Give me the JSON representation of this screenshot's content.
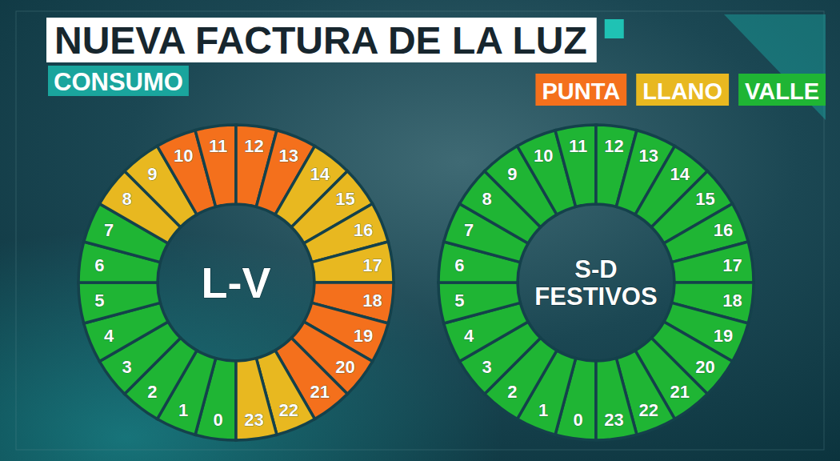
{
  "header": {
    "title": "NUEVA FACTURA DE LA LUZ",
    "subtitle": "CONSUMO"
  },
  "legend_items": [
    {
      "name": "PUNTA",
      "color": "#f4701c"
    },
    {
      "name": "LLANO",
      "color": "#e8b820"
    },
    {
      "name": "VALLE",
      "color": "#1fb534"
    }
  ],
  "chart_data": [
    {
      "type": "pie",
      "title": "L-V",
      "categories": [
        "0",
        "1",
        "2",
        "3",
        "4",
        "5",
        "6",
        "7",
        "8",
        "9",
        "10",
        "11",
        "12",
        "13",
        "14",
        "15",
        "16",
        "17",
        "18",
        "19",
        "20",
        "21",
        "22",
        "23"
      ],
      "values": [
        1,
        1,
        1,
        1,
        1,
        1,
        1,
        1,
        1,
        1,
        1,
        1,
        1,
        1,
        1,
        1,
        1,
        1,
        1,
        1,
        1,
        1,
        1,
        1
      ],
      "colors": [
        "#1fb534",
        "#1fb534",
        "#1fb534",
        "#1fb534",
        "#1fb534",
        "#1fb534",
        "#1fb534",
        "#1fb534",
        "#e8b820",
        "#e8b820",
        "#f4701c",
        "#f4701c",
        "#f4701c",
        "#f4701c",
        "#e8b820",
        "#e8b820",
        "#e8b820",
        "#e8b820",
        "#f4701c",
        "#f4701c",
        "#f4701c",
        "#f4701c",
        "#e8b820",
        "#e8b820"
      ],
      "legend": "top-right"
    },
    {
      "type": "pie",
      "title": "S-D FESTIVOS",
      "categories": [
        "0",
        "1",
        "2",
        "3",
        "4",
        "5",
        "6",
        "7",
        "8",
        "9",
        "10",
        "11",
        "12",
        "13",
        "14",
        "15",
        "16",
        "17",
        "18",
        "19",
        "20",
        "21",
        "22",
        "23"
      ],
      "values": [
        1,
        1,
        1,
        1,
        1,
        1,
        1,
        1,
        1,
        1,
        1,
        1,
        1,
        1,
        1,
        1,
        1,
        1,
        1,
        1,
        1,
        1,
        1,
        1
      ],
      "colors": [
        "#1fb534",
        "#1fb534",
        "#1fb534",
        "#1fb534",
        "#1fb534",
        "#1fb534",
        "#1fb534",
        "#1fb534",
        "#1fb534",
        "#1fb534",
        "#1fb534",
        "#1fb534",
        "#1fb534",
        "#1fb534",
        "#1fb534",
        "#1fb534",
        "#1fb534",
        "#1fb534",
        "#1fb534",
        "#1fb534",
        "#1fb534",
        "#1fb534",
        "#1fb534",
        "#1fb534"
      ]
    }
  ]
}
